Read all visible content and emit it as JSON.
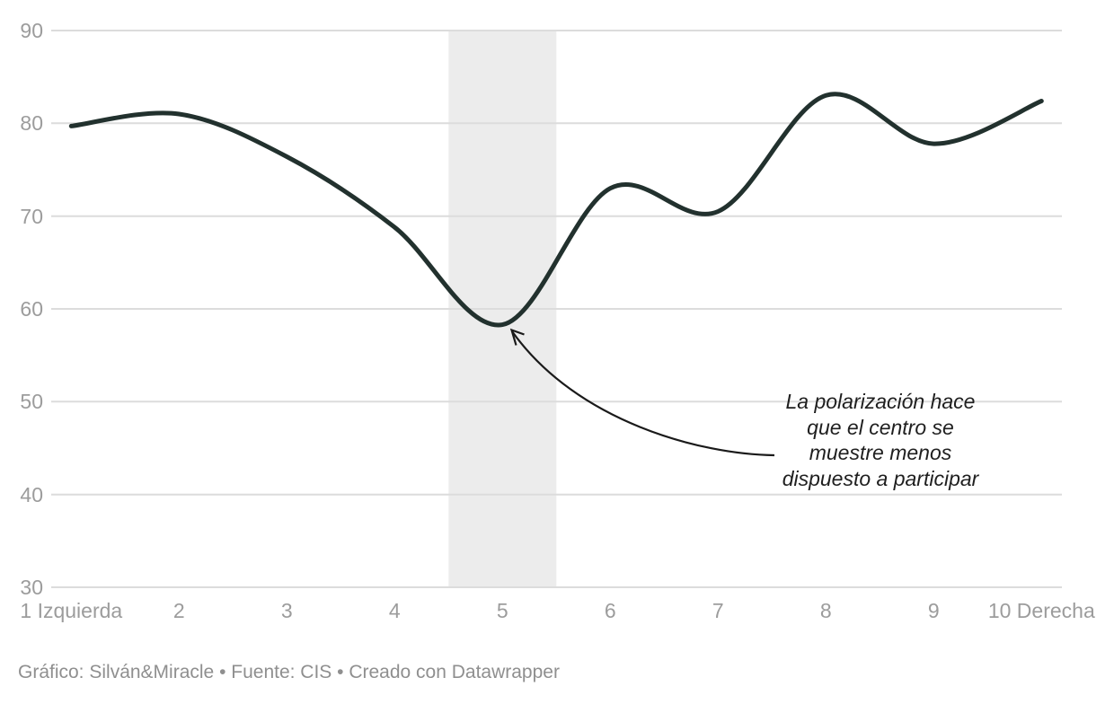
{
  "chart_data": {
    "type": "line",
    "title": "",
    "xlabel": "",
    "ylabel": "",
    "x": [
      1,
      2,
      3,
      4,
      5,
      6,
      7,
      8,
      9,
      10
    ],
    "values": [
      79.7,
      81,
      76.4,
      68.8,
      58.3,
      73,
      70.5,
      83,
      77.8,
      82.4
    ],
    "ylim": [
      30,
      90
    ],
    "yticks": [
      30,
      40,
      50,
      60,
      70,
      80,
      90
    ],
    "xtick_labels": [
      "1 Izquierda",
      "2",
      "3",
      "4",
      "5",
      "6",
      "7",
      "8",
      "9",
      "10 Derecha"
    ],
    "grid": "horizontal",
    "legend": "none",
    "highlight_band": {
      "from": 4.5,
      "to": 5.5
    },
    "annotation": {
      "text": "La polarización hace que el centro se muestre menos dispuesto a participar",
      "lines": [
        "La polarización hace",
        "que el centro se",
        "muestre menos",
        "dispuesto a participar"
      ],
      "arrow_target": {
        "x": 5,
        "y": 58.3
      }
    },
    "line_color": "#22312e",
    "band_color": "#ececec",
    "grid_color": "#dcdcdc",
    "label_color": "#9c9c9c",
    "annotation_color": "#1f1f1f",
    "arrow_color": "#1a1a1a",
    "footer_color": "#8f8f8f"
  },
  "footer": {
    "text": "Gráfico: Silván&Miracle • Fuente: CIS • Creado con Datawrapper"
  }
}
